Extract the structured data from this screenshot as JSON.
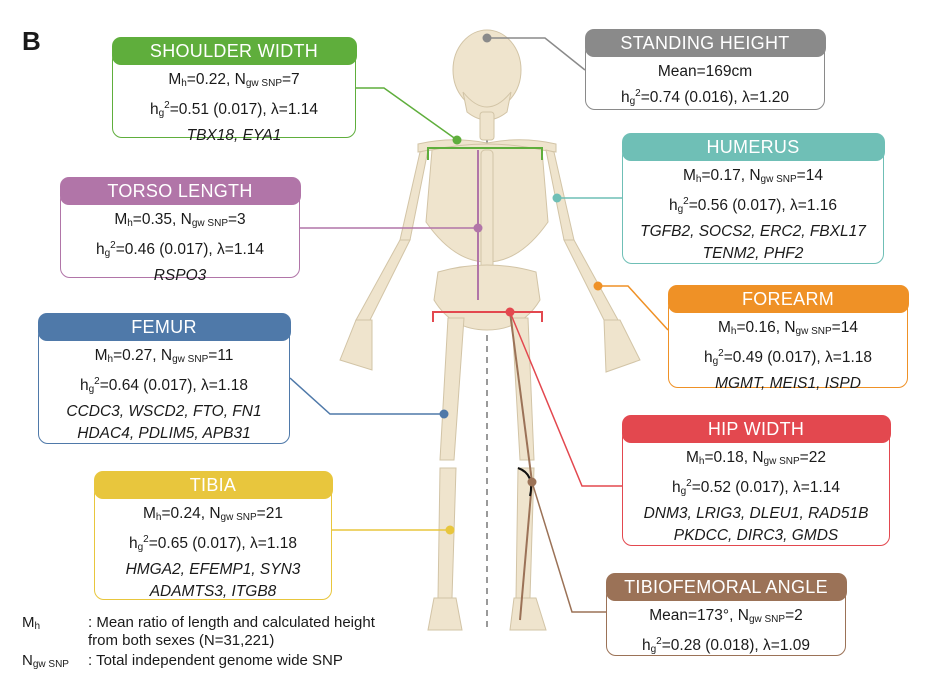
{
  "panel_label": "B",
  "colors": {
    "shoulder": "#5fae3c",
    "standing": "#8a8a8a",
    "humerus": "#6fbfb6",
    "torso": "#b175a8",
    "femur": "#4f79a9",
    "forearm": "#ef9126",
    "hip": "#e3484f",
    "tibia": "#e8c63d",
    "angle": "#9b7257"
  },
  "boxes": {
    "shoulder": {
      "title": "SHOULDER WIDTH",
      "mh": "0.22",
      "nsnp": "7",
      "h2": "0.51 (0.017)",
      "lambda": "1.14",
      "genes": [
        "TBX18, EYA1"
      ]
    },
    "standing": {
      "title": "STANDING HEIGHT",
      "mean": "Mean=169cm",
      "h2": "0.74 (0.016)",
      "lambda": "1.20"
    },
    "humerus": {
      "title": "HUMERUS",
      "mh": "0.17",
      "nsnp": "14",
      "h2": "0.56 (0.017)",
      "lambda": "1.16",
      "genes": [
        "TGFB2, SOCS2, ERC2, FBXL17",
        "TENM2, PHF2"
      ]
    },
    "torso": {
      "title": "TORSO LENGTH",
      "mh": "0.35",
      "nsnp": "3",
      "h2": "0.46 (0.017)",
      "lambda": "1.14",
      "genes": [
        "RSPO3"
      ]
    },
    "femur": {
      "title": "FEMUR",
      "mh": "0.27",
      "nsnp": "11",
      "h2": "0.64 (0.017)",
      "lambda": "1.18",
      "genes": [
        "CCDC3, WSCD2, FTO, FN1",
        "HDAC4, PDLIM5, APB31"
      ]
    },
    "forearm": {
      "title": "FOREARM",
      "mh": "0.16",
      "nsnp": "14",
      "h2": "0.49 (0.017)",
      "lambda": "1.18",
      "genes": [
        "MGMT, MEIS1, ISPD"
      ]
    },
    "hip": {
      "title": "HIP WIDTH",
      "mh": "0.18",
      "nsnp": "22",
      "h2": "0.52 (0.017)",
      "lambda": "1.14",
      "genes": [
        "DNM3, LRIG3, DLEU1, RAD51B",
        "PKDCC, DIRC3, GMDS"
      ]
    },
    "tibia": {
      "title": "TIBIA",
      "mh": "0.24",
      "nsnp": "21",
      "h2": "0.65 (0.017)",
      "lambda": "1.18",
      "genes": [
        "HMGA2, EFEMP1, SYN3",
        "ADAMTS3, ITGB8"
      ]
    },
    "angle": {
      "title": "TIBIOFEMORAL ANGLE",
      "mean": "Mean=173°",
      "nsnp": "2",
      "h2": "0.28 (0.018)",
      "lambda": "1.09"
    }
  },
  "legend": {
    "mh_key": "M",
    "mh_key_sub": "h",
    "mh_desc": ": Mean ratio of length and calculated height from both sexes (N=31,221)",
    "nsnp_key": "N",
    "nsnp_key_sub": "gw SNP",
    "nsnp_desc": ": Total independent genome wide SNP"
  },
  "symbols": {
    "m": "M",
    "m_sub": "h",
    "n": "N",
    "n_sub": "gw SNP",
    "h": "h",
    "h_sub": "g",
    "h_sup": "2",
    "lambda": "λ"
  }
}
